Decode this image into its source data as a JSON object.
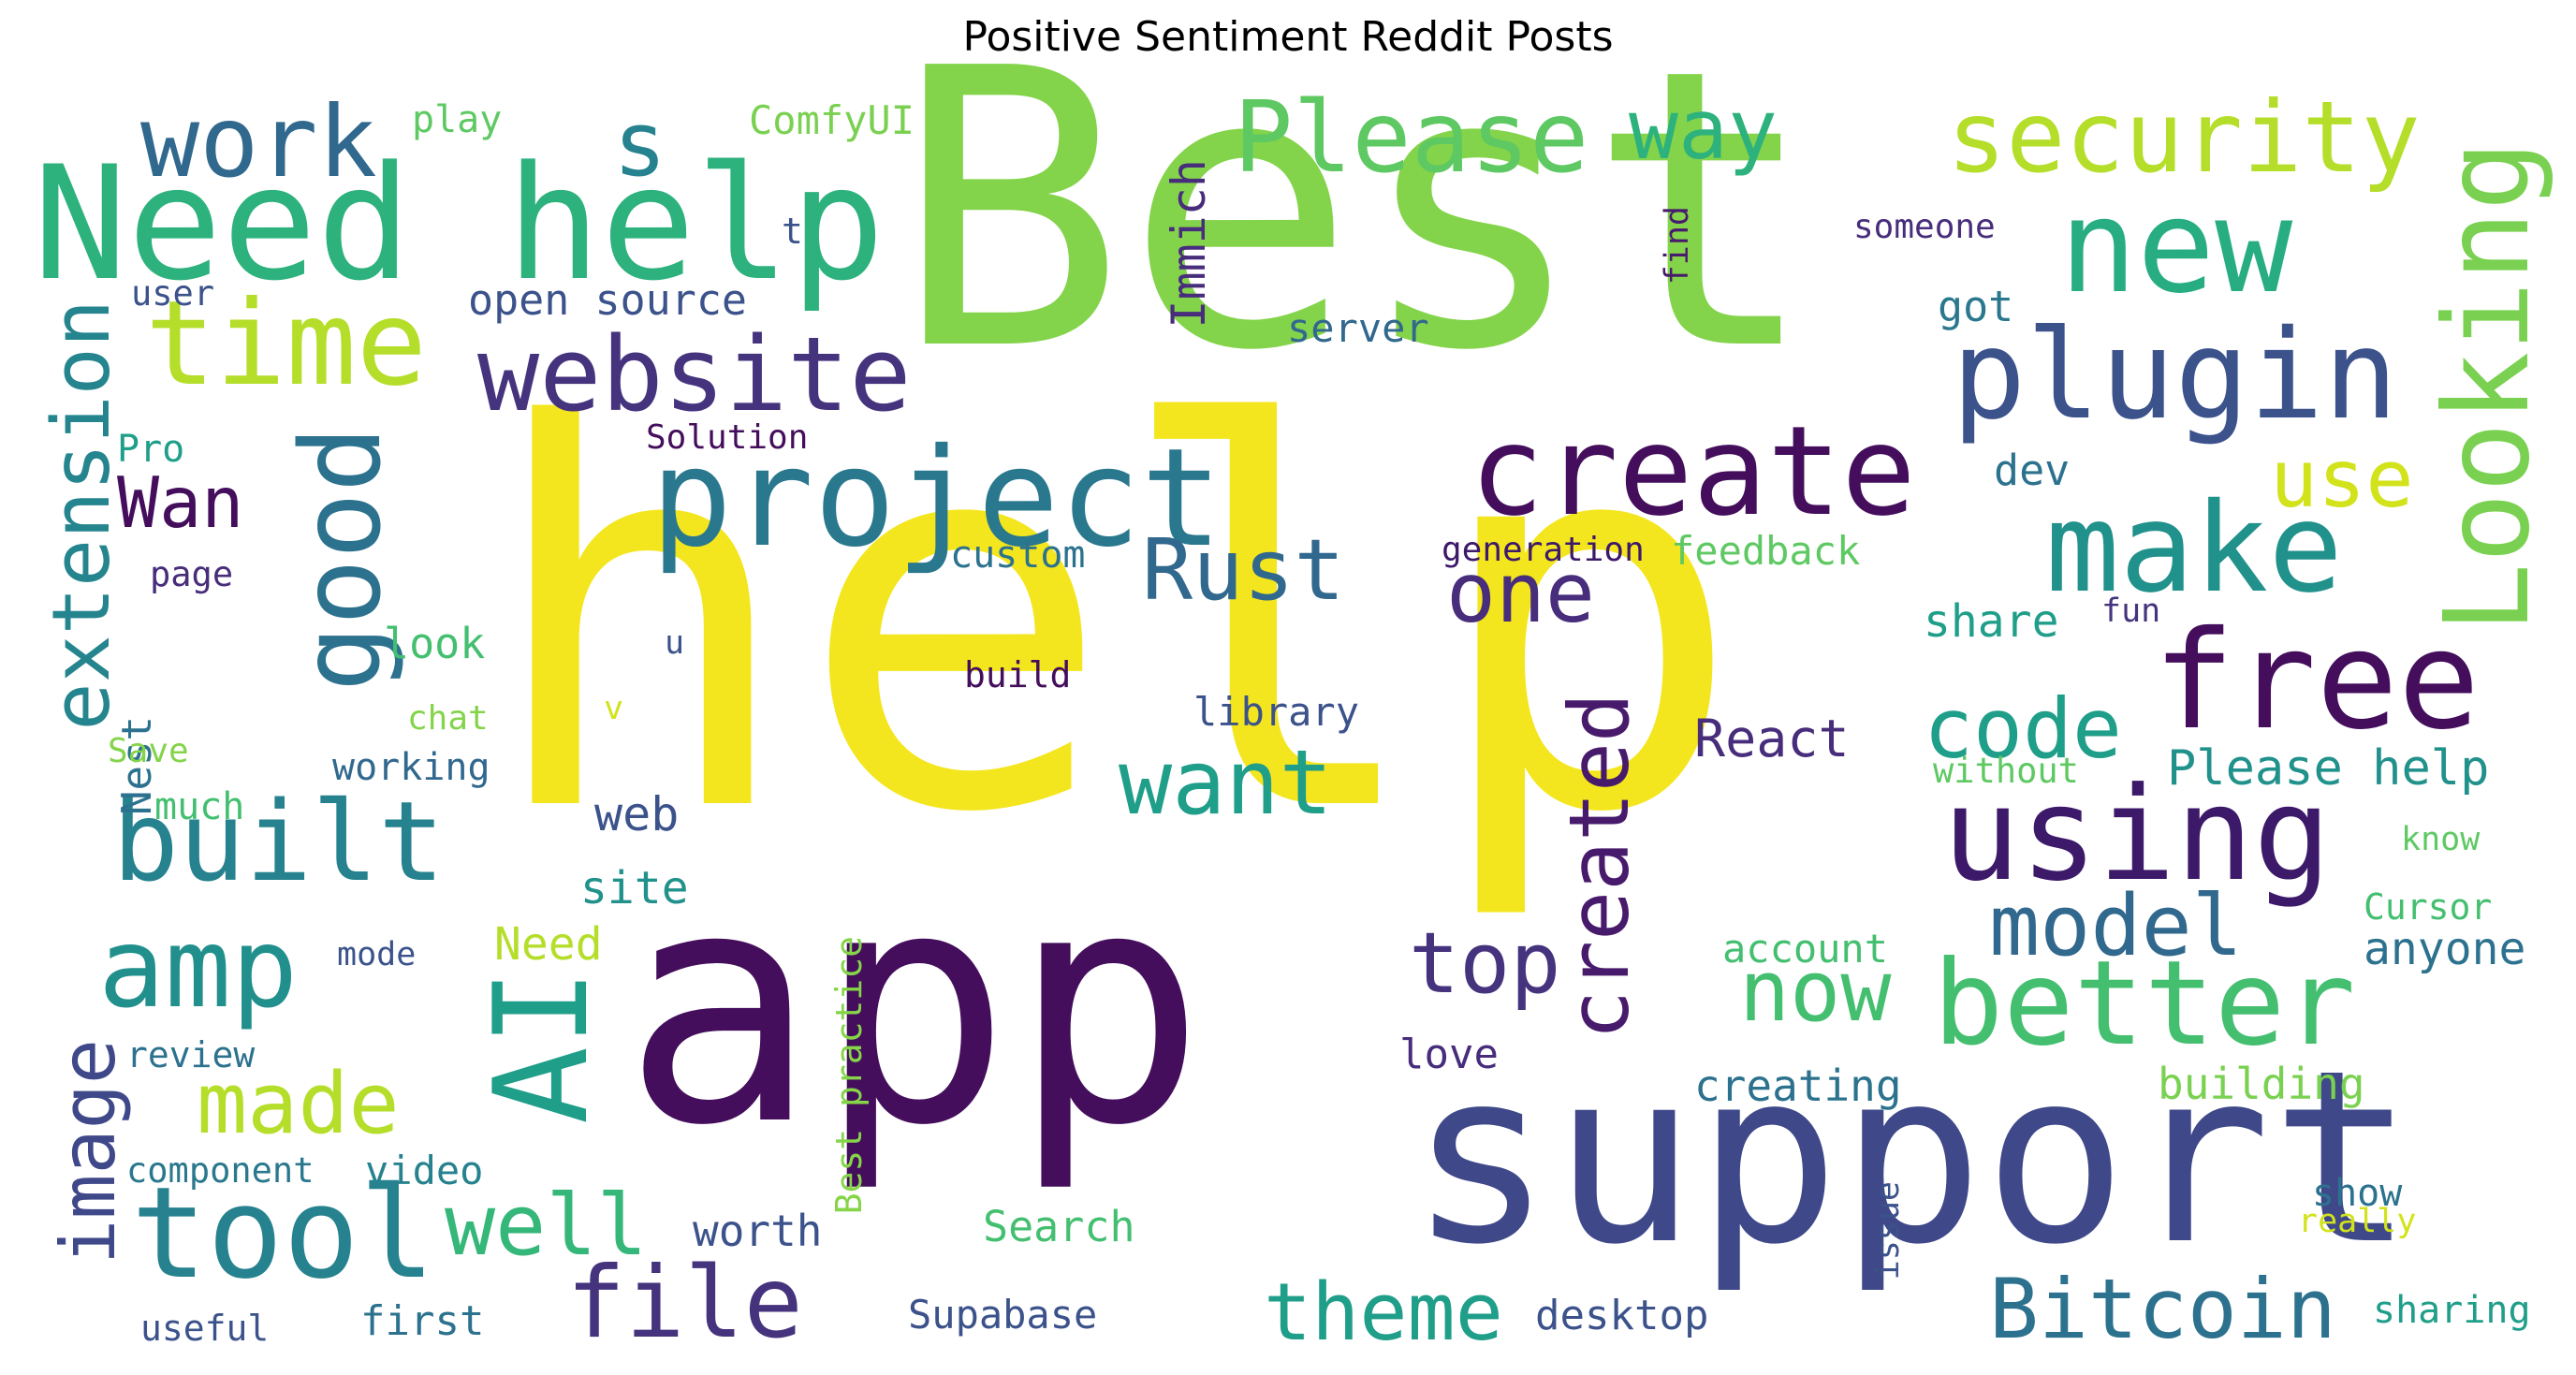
{
  "title": "Positive Sentiment Reddit Posts",
  "colors": {
    "background": "#ffffff",
    "title": "#000000"
  },
  "words": [
    {
      "id": "best",
      "text": "Best",
      "color": "#84d44b"
    },
    {
      "id": "help",
      "text": "help",
      "color": "#f4e61e"
    },
    {
      "id": "app",
      "text": "app",
      "color": "#440e5c"
    },
    {
      "id": "support",
      "text": "support",
      "color": "#3f4889"
    },
    {
      "id": "need-help",
      "text": "Need help",
      "color": "#2db27d"
    },
    {
      "id": "project",
      "text": "project",
      "color": "#2a788e"
    },
    {
      "id": "create",
      "text": "create",
      "color": "#440e5c"
    },
    {
      "id": "make",
      "text": "make",
      "color": "#21918c"
    },
    {
      "id": "free",
      "text": "free",
      "color": "#440e5c"
    },
    {
      "id": "using",
      "text": "using",
      "color": "#3d196a"
    },
    {
      "id": "better",
      "text": "better",
      "color": "#44bf70"
    },
    {
      "id": "plugin",
      "text": "plugin",
      "color": "#3b528b"
    },
    {
      "id": "new",
      "text": "new",
      "color": "#27ad81"
    },
    {
      "id": "security",
      "text": "security",
      "color": "#b5de2b"
    },
    {
      "id": "please",
      "text": "Please",
      "color": "#5ec962"
    },
    {
      "id": "way",
      "text": "way",
      "color": "#2db27d"
    },
    {
      "id": "looking",
      "text": "Looking",
      "color": "#7ad151"
    },
    {
      "id": "time",
      "text": "time",
      "color": "#b5de2b"
    },
    {
      "id": "work",
      "text": "work",
      "color": "#31688e"
    },
    {
      "id": "s",
      "text": "s",
      "color": "#26828e"
    },
    {
      "id": "website",
      "text": "website",
      "color": "#46337e"
    },
    {
      "id": "good",
      "text": "good",
      "color": "#2c728e"
    },
    {
      "id": "built",
      "text": "built",
      "color": "#26828e"
    },
    {
      "id": "amp",
      "text": "amp",
      "color": "#21908d"
    },
    {
      "id": "extension",
      "text": "extension",
      "color": "#25858e"
    },
    {
      "id": "ai",
      "text": "AI",
      "color": "#1f9e89"
    },
    {
      "id": "tool",
      "text": "tool",
      "color": "#26828e"
    },
    {
      "id": "image",
      "text": "image",
      "color": "#3f4889"
    },
    {
      "id": "made",
      "text": "made",
      "color": "#b5de2b"
    },
    {
      "id": "well",
      "text": "well",
      "color": "#35b779"
    },
    {
      "id": "file",
      "text": "file",
      "color": "#46337e"
    },
    {
      "id": "want",
      "text": "want",
      "color": "#1f9e89"
    },
    {
      "id": "rust",
      "text": "Rust",
      "color": "#31688e"
    },
    {
      "id": "one",
      "text": "one",
      "color": "#472d7b"
    },
    {
      "id": "created",
      "text": "created",
      "color": "#481a6c"
    },
    {
      "id": "top",
      "text": "top",
      "color": "#46337e"
    },
    {
      "id": "now",
      "text": "now",
      "color": "#44bf70"
    },
    {
      "id": "model",
      "text": "model",
      "color": "#31688e"
    },
    {
      "id": "code",
      "text": "code",
      "color": "#1f9e89"
    },
    {
      "id": "use",
      "text": "use",
      "color": "#d2e21b"
    },
    {
      "id": "theme",
      "text": "theme",
      "color": "#1f9e89"
    },
    {
      "id": "bitcoin",
      "text": "Bitcoin",
      "color": "#2c728e"
    },
    {
      "id": "wan",
      "text": "Wan",
      "color": "#440e5c"
    },
    {
      "id": "immich",
      "text": "Immich",
      "color": "#472d7b"
    },
    {
      "id": "comfyui",
      "text": "ComfyUI",
      "color": "#7ad151"
    },
    {
      "id": "open-source",
      "text": "open source",
      "color": "#3b528b"
    },
    {
      "id": "server",
      "text": "server",
      "color": "#31688e"
    },
    {
      "id": "got",
      "text": "got",
      "color": "#2a788e"
    },
    {
      "id": "dev",
      "text": "dev",
      "color": "#2c728e"
    },
    {
      "id": "someone",
      "text": "someone",
      "color": "#472d7b"
    },
    {
      "id": "find",
      "text": "find",
      "color": "#481a6c"
    },
    {
      "id": "play",
      "text": "play",
      "color": "#5ec962"
    },
    {
      "id": "t",
      "text": "t",
      "color": "#3b528b"
    },
    {
      "id": "user",
      "text": "user",
      "color": "#3b528b"
    },
    {
      "id": "pro",
      "text": "Pro",
      "color": "#1f9e89"
    },
    {
      "id": "solution",
      "text": "Solution",
      "color": "#440e5c"
    },
    {
      "id": "page",
      "text": "page",
      "color": "#472d7b"
    },
    {
      "id": "custom",
      "text": "custom",
      "color": "#2c728e"
    },
    {
      "id": "generation",
      "text": "generation",
      "color": "#3d196a"
    },
    {
      "id": "feedback",
      "text": "feedback",
      "color": "#5ec962"
    },
    {
      "id": "share",
      "text": "share",
      "color": "#1f9e89"
    },
    {
      "id": "fun",
      "text": "fun",
      "color": "#46337e"
    },
    {
      "id": "look",
      "text": "look",
      "color": "#44bf70"
    },
    {
      "id": "u",
      "text": "u",
      "color": "#3b528b"
    },
    {
      "id": "nest",
      "text": "Nest",
      "color": "#2c728e"
    },
    {
      "id": "best-practice",
      "text": "Best practice",
      "color": "#86d549"
    },
    {
      "id": "build",
      "text": "build",
      "color": "#440e5c"
    },
    {
      "id": "library",
      "text": "library",
      "color": "#3b528b"
    },
    {
      "id": "react",
      "text": "React",
      "color": "#472d7b"
    },
    {
      "id": "please-help",
      "text": "Please help",
      "color": "#21918c"
    },
    {
      "id": "without",
      "text": "without",
      "color": "#5ec962"
    },
    {
      "id": "chat",
      "text": "chat",
      "color": "#84d44b"
    },
    {
      "id": "v",
      "text": "v",
      "color": "#d2e21b"
    },
    {
      "id": "save",
      "text": "Save",
      "color": "#84d44b"
    },
    {
      "id": "working",
      "text": "working",
      "color": "#31688e"
    },
    {
      "id": "web",
      "text": "web",
      "color": "#3b528b"
    },
    {
      "id": "much",
      "text": "much",
      "color": "#44bf70"
    },
    {
      "id": "site",
      "text": "site",
      "color": "#21918c"
    },
    {
      "id": "know",
      "text": "know",
      "color": "#5ec962"
    },
    {
      "id": "cursor",
      "text": "Cursor",
      "color": "#44bf70"
    },
    {
      "id": "need",
      "text": "Need",
      "color": "#b5de2b"
    },
    {
      "id": "mode",
      "text": "mode",
      "color": "#3b528b"
    },
    {
      "id": "account",
      "text": "account",
      "color": "#44bf70"
    },
    {
      "id": "anyone",
      "text": "anyone",
      "color": "#2c728e"
    },
    {
      "id": "review",
      "text": "review",
      "color": "#2c728e"
    },
    {
      "id": "love",
      "text": "love",
      "color": "#472d7b"
    },
    {
      "id": "creating",
      "text": "creating",
      "color": "#2c728e"
    },
    {
      "id": "building",
      "text": "building",
      "color": "#7ad151"
    },
    {
      "id": "component",
      "text": "component",
      "color": "#2a788e"
    },
    {
      "id": "video",
      "text": "video",
      "color": "#26828e"
    },
    {
      "id": "worth",
      "text": "worth",
      "color": "#3b528b"
    },
    {
      "id": "search",
      "text": "Search",
      "color": "#44bf70"
    },
    {
      "id": "issue",
      "text": "issue",
      "color": "#3b528b"
    },
    {
      "id": "show",
      "text": "show",
      "color": "#2c728e"
    },
    {
      "id": "really",
      "text": "really",
      "color": "#d2e21b"
    },
    {
      "id": "useful",
      "text": "useful",
      "color": "#3b528b"
    },
    {
      "id": "first",
      "text": "first",
      "color": "#2c728e"
    },
    {
      "id": "supabase",
      "text": "Supabase",
      "color": "#3b528b"
    },
    {
      "id": "desktop",
      "text": "desktop",
      "color": "#3b528b"
    },
    {
      "id": "sharing",
      "text": "sharing",
      "color": "#1f9e89"
    }
  ]
}
